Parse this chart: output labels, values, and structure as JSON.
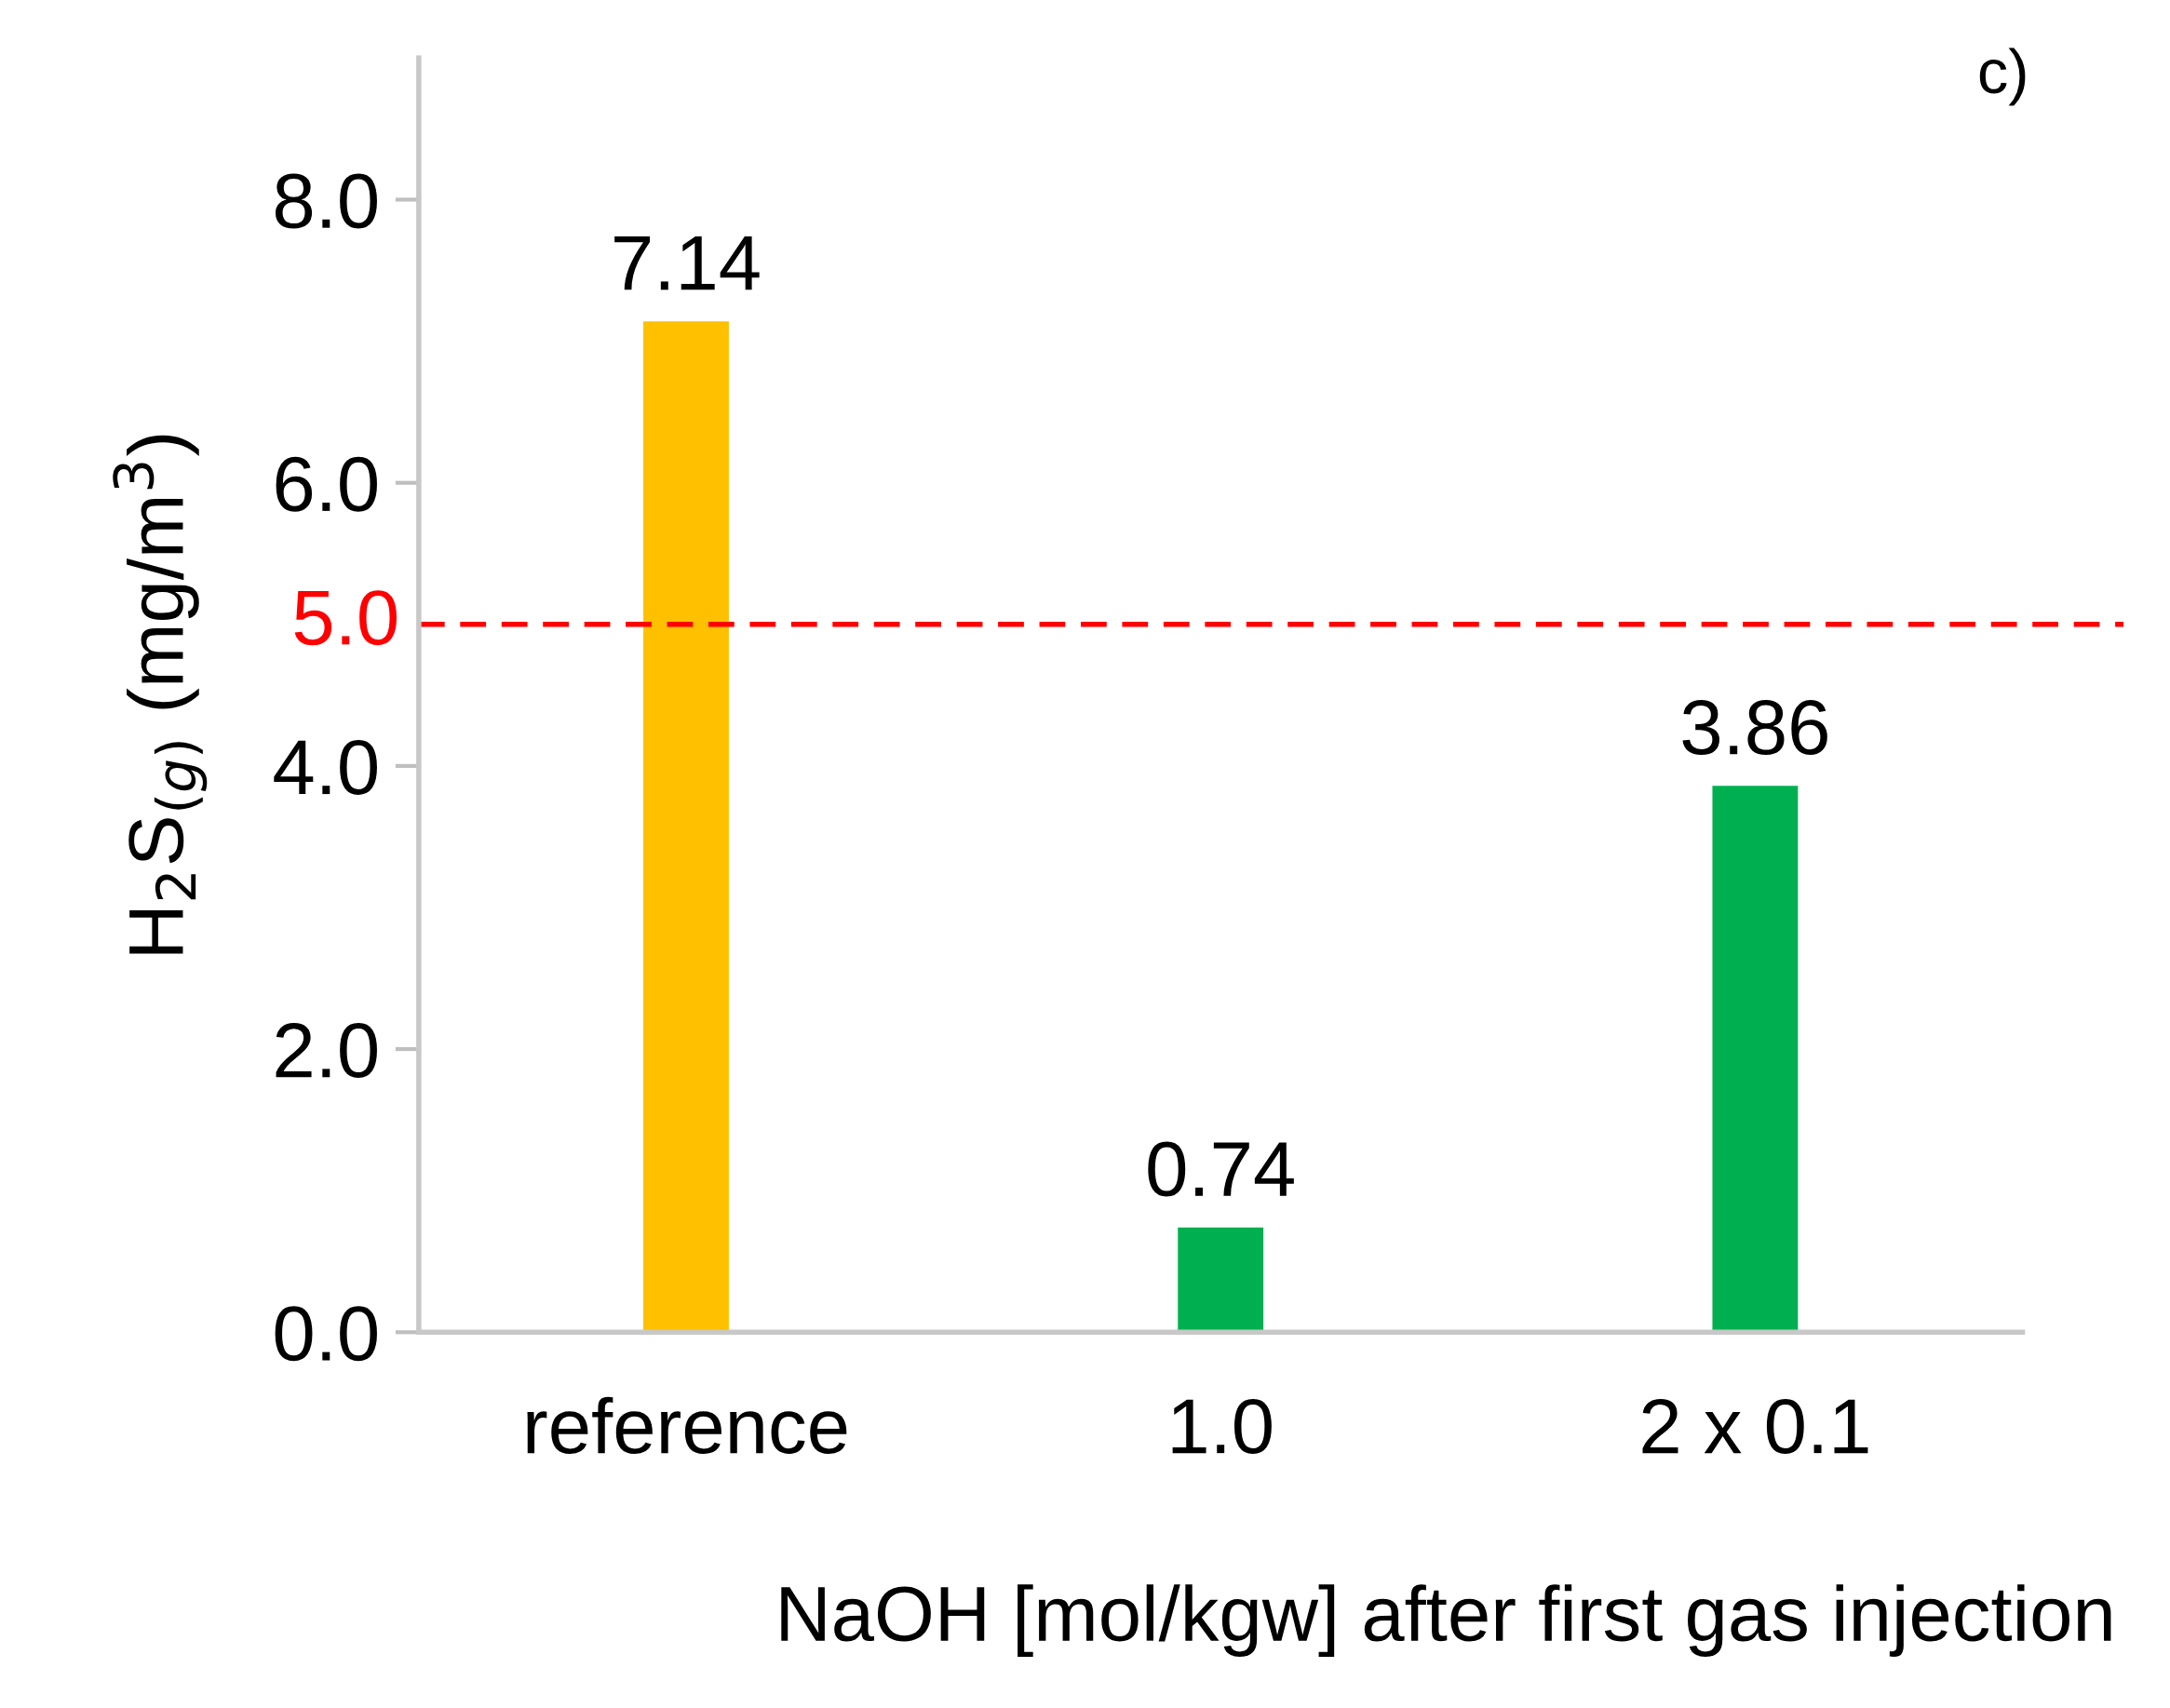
{
  "chart_data": {
    "type": "bar",
    "categories": [
      "reference",
      "1.0",
      "2 x 0.1"
    ],
    "values": [
      7.14,
      0.74,
      3.86
    ],
    "colors": [
      "#ffc000",
      "#00b050",
      "#00b050"
    ],
    "data_labels": true,
    "xlabel": "NaOH [mol/kgw] after first gas injection",
    "ylabel": "H$_{2}$S$_{(g)}$ (mg/m$^{3}$)",
    "ylim": [
      0,
      9.0
    ],
    "yticks": [
      {
        "value": 0,
        "label": "0.0"
      },
      {
        "value": 2,
        "label": "2.0"
      },
      {
        "value": 4,
        "label": "4.0"
      },
      {
        "value": 6,
        "label": "6.0"
      },
      {
        "value": 8,
        "label": "8.0"
      }
    ],
    "ref_lines": [
      {
        "axis": "y",
        "value": 5.0,
        "label": "5.0",
        "color": "#ff0000",
        "line_style": "dashed"
      }
    ],
    "annotations": [
      "c)"
    ],
    "grid": false,
    "legend": false
  }
}
